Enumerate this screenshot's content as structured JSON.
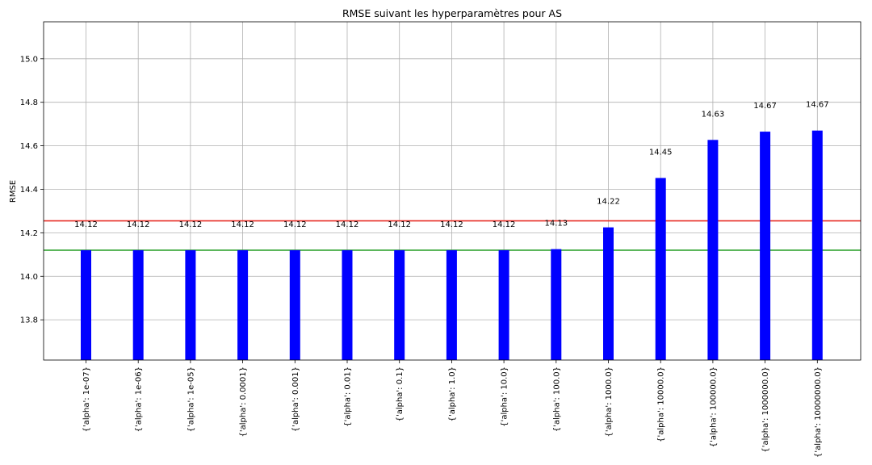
{
  "chart_data": {
    "type": "bar",
    "title": "RMSE suivant les hyperparamètres pour AS",
    "xlabel": "",
    "ylabel": "RMSE",
    "ylim": [
      13.615,
      15.17
    ],
    "yticks": [
      13.8,
      14.0,
      14.2,
      14.4,
      14.6,
      14.8,
      15.0
    ],
    "grid": true,
    "categories": [
      "{'alpha': 1e-07}",
      "{'alpha': 1e-06}",
      "{'alpha': 1e-05}",
      "{'alpha': 0.0001}",
      "{'alpha': 0.001}",
      "{'alpha': 0.01}",
      "{'alpha': 0.1}",
      "{'alpha': 1.0}",
      "{'alpha': 10.0}",
      "{'alpha': 100.0}",
      "{'alpha': 1000.0}",
      "{'alpha': 10000.0}",
      "{'alpha': 100000.0}",
      "{'alpha': 1000000.0}",
      "{'alpha': 10000000.0}"
    ],
    "values": [
      14.12,
      14.12,
      14.12,
      14.12,
      14.12,
      14.12,
      14.12,
      14.12,
      14.12,
      14.125,
      14.225,
      14.452,
      14.627,
      14.665,
      14.67
    ],
    "data_labels": [
      "14.12",
      "14.12",
      "14.12",
      "14.12",
      "14.12",
      "14.12",
      "14.12",
      "14.12",
      "14.12",
      "14.13",
      "14.22",
      "14.45",
      "14.63",
      "14.67",
      "14.67"
    ],
    "bar_color": "#0000ff",
    "reference_lines": [
      {
        "value": 14.255,
        "color": "#e8312a"
      },
      {
        "value": 14.12,
        "color": "#2ca02c"
      }
    ]
  }
}
